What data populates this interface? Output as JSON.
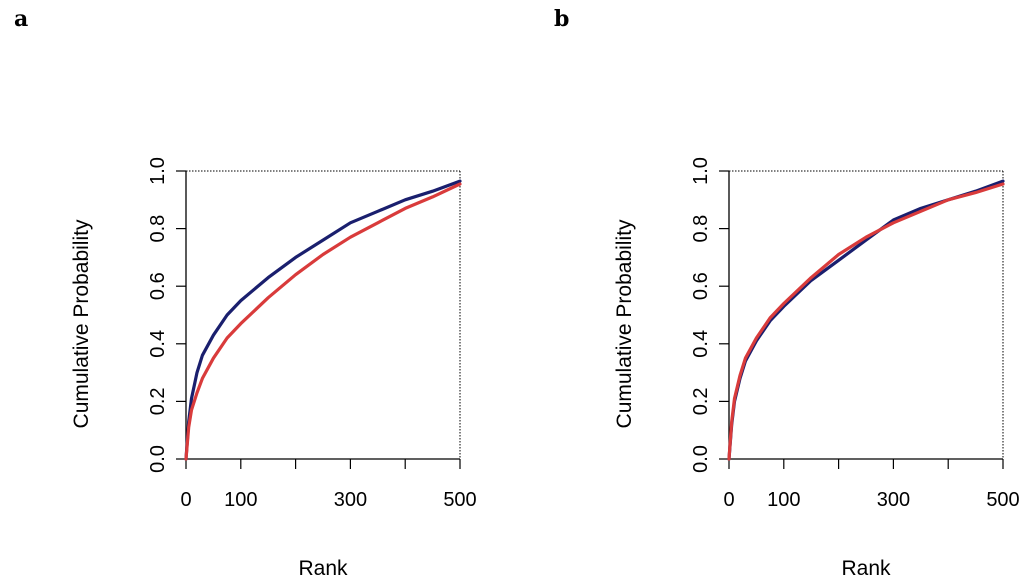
{
  "panels": [
    {
      "letter": "a"
    },
    {
      "letter": "b"
    }
  ],
  "chart_data": [
    {
      "type": "line",
      "panel": "a",
      "xlabel": "Rank",
      "ylabel": "Cumulative Probability",
      "xlim": [
        0,
        500
      ],
      "ylim": [
        0,
        1
      ],
      "xticks": [
        0,
        100,
        200,
        300,
        400,
        500
      ],
      "xtick_labels": [
        "0",
        "100",
        "",
        "300",
        "",
        "500"
      ],
      "yticks": [
        0,
        0.2,
        0.4,
        0.6,
        0.8,
        1.0
      ],
      "ytick_labels": [
        "0.0",
        "0.2",
        "0.4",
        "0.6",
        "0.8",
        "1.0"
      ],
      "series": [
        {
          "color": "#1a1f6e",
          "x": [
            0,
            5,
            10,
            20,
            30,
            50,
            75,
            100,
            150,
            200,
            250,
            300,
            350,
            400,
            450,
            500
          ],
          "y": [
            0,
            0.13,
            0.21,
            0.3,
            0.36,
            0.43,
            0.5,
            0.55,
            0.63,
            0.7,
            0.76,
            0.82,
            0.86,
            0.9,
            0.93,
            0.965
          ]
        },
        {
          "color": "#d93b3b",
          "x": [
            0,
            5,
            10,
            20,
            30,
            50,
            75,
            100,
            150,
            200,
            250,
            300,
            350,
            400,
            450,
            500
          ],
          "y": [
            0,
            0.11,
            0.17,
            0.23,
            0.28,
            0.35,
            0.42,
            0.47,
            0.56,
            0.64,
            0.71,
            0.77,
            0.82,
            0.87,
            0.91,
            0.955
          ]
        }
      ]
    },
    {
      "type": "line",
      "panel": "b",
      "xlabel": "Rank",
      "ylabel": "Cumulative Probability",
      "xlim": [
        0,
        500
      ],
      "ylim": [
        0,
        1
      ],
      "xticks": [
        0,
        100,
        200,
        300,
        400,
        500
      ],
      "xtick_labels": [
        "0",
        "100",
        "",
        "300",
        "",
        "500"
      ],
      "yticks": [
        0,
        0.2,
        0.4,
        0.6,
        0.8,
        1.0
      ],
      "ytick_labels": [
        "0.0",
        "0.2",
        "0.4",
        "0.6",
        "0.8",
        "1.0"
      ],
      "series": [
        {
          "color": "#1a1f6e",
          "x": [
            0,
            5,
            10,
            20,
            30,
            50,
            75,
            100,
            150,
            200,
            250,
            300,
            350,
            400,
            450,
            500
          ],
          "y": [
            0,
            0.12,
            0.2,
            0.28,
            0.34,
            0.41,
            0.48,
            0.53,
            0.62,
            0.69,
            0.76,
            0.83,
            0.87,
            0.9,
            0.93,
            0.965
          ]
        },
        {
          "color": "#d93b3b",
          "x": [
            0,
            5,
            10,
            20,
            30,
            50,
            75,
            100,
            150,
            200,
            250,
            300,
            350,
            400,
            450,
            500
          ],
          "y": [
            0,
            0.13,
            0.21,
            0.29,
            0.35,
            0.42,
            0.49,
            0.54,
            0.63,
            0.71,
            0.77,
            0.82,
            0.86,
            0.9,
            0.925,
            0.955
          ]
        }
      ]
    }
  ]
}
